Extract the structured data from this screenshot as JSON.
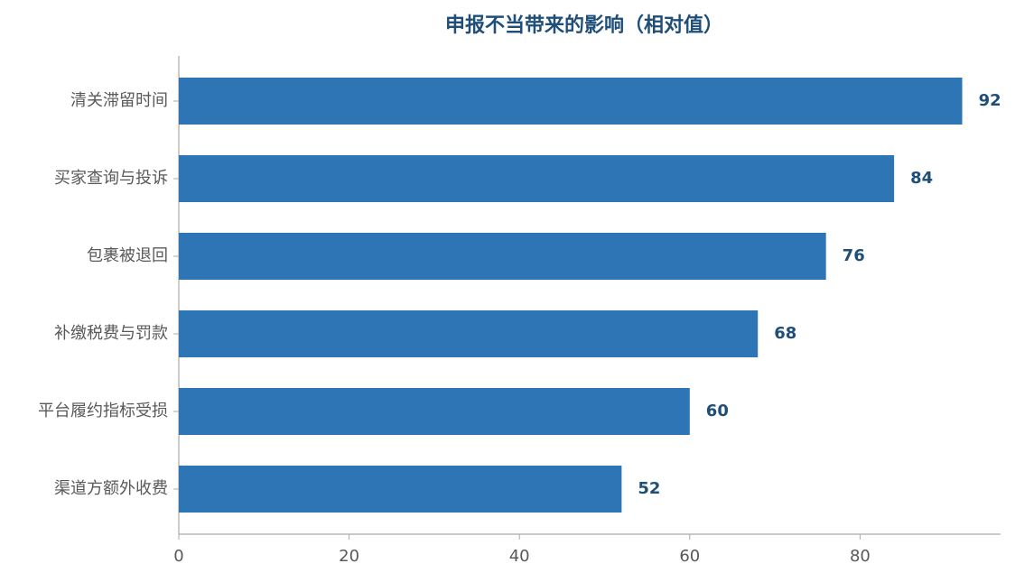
{
  "chart_data": {
    "type": "barh",
    "title": "申报不当带来的影响（相对值）",
    "categories": [
      "清关滞留时间",
      "买家查询与投诉",
      "包裹被退回",
      "补缴税费与罚款",
      "平台履约指标受损",
      "渠道方额外收费"
    ],
    "values": [
      92,
      84,
      76,
      68,
      60,
      52
    ],
    "color": "#2e75b6",
    "label_color": "#1f4e79",
    "xlim": [
      0,
      96.5
    ],
    "xticks": [
      0,
      20,
      40,
      60,
      80
    ],
    "grid": false
  }
}
